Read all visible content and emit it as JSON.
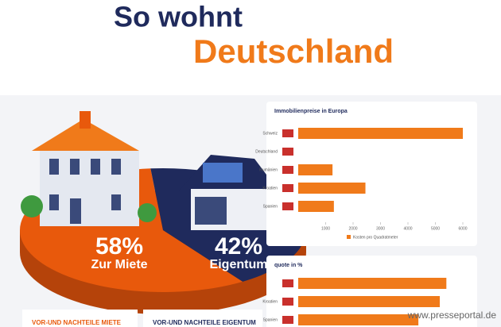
{
  "header": {
    "line1": "So wohnt",
    "line2": "Deutschland"
  },
  "chart_data": [
    {
      "type": "pie",
      "categories": [
        "Zur Miete",
        "Eigentum"
      ],
      "values": [
        58,
        42
      ],
      "value_labels": [
        "58%",
        "42%"
      ],
      "colors": [
        "#e8590c",
        "#1f2a5c"
      ]
    },
    {
      "type": "bar",
      "title": "Immobilienpreise in Europa",
      "categories": [
        "Schweiz",
        "Deutschland",
        "Rumänien",
        "Kroatien",
        "Spanien"
      ],
      "series": [
        {
          "name": "Kosten pro Quadratmeter",
          "color": "#f07a1a",
          "values": [
            6000,
            null,
            1250,
            2450,
            1300
          ]
        }
      ],
      "xlim": [
        0,
        6000
      ],
      "xticks": [
        1000,
        2000,
        3000,
        4000,
        5000,
        6000
      ]
    },
    {
      "type": "bar",
      "title": "quote in %",
      "categories": [
        null,
        "Kroatien",
        "Spanien"
      ],
      "series": [
        {
          "name": null,
          "color": "#f07a1a",
          "values": [
            90,
            86,
            73
          ]
        }
      ],
      "xlim": [
        0,
        100
      ]
    }
  ],
  "boxes": [
    "VOR-UND NACHTEILE MIETE",
    "VOR-UND NACHTEILE EIGENTUM"
  ],
  "watermark": "www.presseportal.de"
}
